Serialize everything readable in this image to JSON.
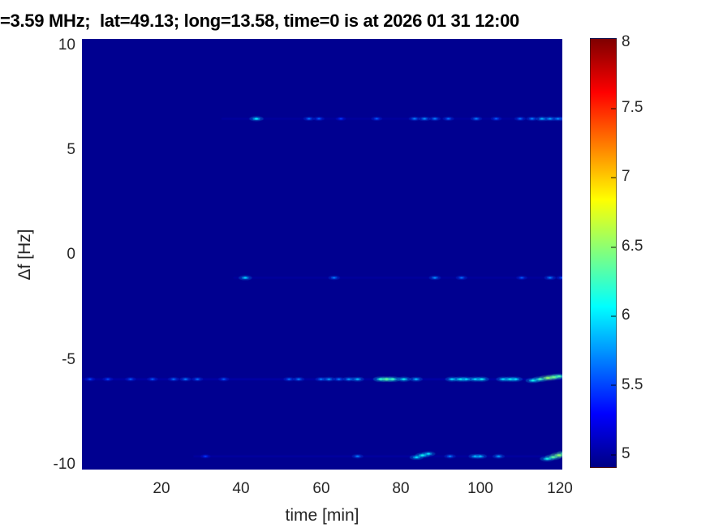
{
  "figure": {
    "title": "=3.59 MHz;  lat=49.13; long=13.58, time=0 is at 2026 01 31 12:00"
  },
  "colors": {
    "axis_text": "#262626",
    "title_text": "#000000",
    "plot_background": "#000090",
    "colorbar_top": "#7f0000",
    "colorbar_bottom": "#000084"
  },
  "chart_data": {
    "type": "heatmap",
    "title": "=3.59 MHz;  lat=49.13; long=13.58, time=0 is at 2026 01 31 12:00",
    "xlabel": "time [min]",
    "ylabel": "Δf [Hz]",
    "xlim": [
      0,
      120.6
    ],
    "ylim": [
      -10.25,
      10.25
    ],
    "clim": [
      4.9,
      8
    ],
    "colormap": "jet",
    "grid": false,
    "background_value": 4.95,
    "xticks": [
      "20",
      "40",
      "60",
      "80",
      "100",
      "120"
    ],
    "xtick_values": [
      20,
      40,
      60,
      80,
      100,
      120
    ],
    "yticks": [
      "10",
      "5",
      "0",
      "-5",
      "-10"
    ],
    "ytick_values": [
      10,
      5,
      0,
      -5,
      -10
    ],
    "colorbar": {
      "ticks": [
        "8",
        "7.5",
        "7",
        "6.5",
        "6",
        "5.5",
        "5"
      ],
      "tick_values": [
        8,
        7.5,
        7,
        6.5,
        6,
        5.5,
        5
      ],
      "position": "right"
    },
    "rows": [
      {
        "df": 6.45,
        "band": [
          35,
          121,
          5.08
        ],
        "dots": [
          [
            43.8,
            5.95
          ],
          [
            57,
            5.55
          ],
          [
            59.5,
            5.5
          ],
          [
            65,
            5.4
          ],
          [
            74,
            5.5
          ],
          [
            83.5,
            5.6
          ],
          [
            86,
            5.65
          ],
          [
            88.6,
            5.6
          ],
          [
            92,
            5.55
          ],
          [
            99,
            5.6
          ],
          [
            104,
            5.5
          ],
          [
            110,
            5.55
          ],
          [
            113,
            5.6
          ],
          [
            115.5,
            5.75
          ],
          [
            117.5,
            5.7
          ],
          [
            119.5,
            5.65
          ],
          [
            121,
            5.6
          ]
        ]
      },
      {
        "df": -1.12,
        "band": [
          38,
          121,
          5.07
        ],
        "dots": [
          [
            41,
            5.85
          ],
          [
            63.3,
            5.6
          ],
          [
            88.6,
            5.65
          ],
          [
            95.3,
            5.55
          ],
          [
            110.4,
            5.5
          ],
          [
            117.5,
            5.6
          ],
          [
            120.5,
            5.5
          ]
        ]
      },
      {
        "df": -5.95,
        "band": [
          0,
          121,
          5.15
        ],
        "dots": [
          [
            2,
            5.45
          ],
          [
            6.5,
            5.45
          ],
          [
            12.2,
            5.5
          ],
          [
            17.7,
            5.5
          ],
          [
            23,
            5.55
          ],
          [
            26,
            5.6
          ],
          [
            29,
            5.55
          ],
          [
            35.6,
            5.5
          ],
          [
            52,
            5.55
          ],
          [
            54.4,
            5.6
          ],
          [
            60,
            5.6
          ],
          [
            62,
            5.7
          ],
          [
            64.5,
            5.6
          ],
          [
            67,
            5.7
          ],
          [
            69.2,
            5.8
          ],
          [
            75,
            6.1
          ],
          [
            76.5,
            6.3
          ],
          [
            78,
            6.15
          ],
          [
            80.8,
            6.0
          ],
          [
            83.9,
            5.8
          ],
          [
            92.9,
            5.9
          ],
          [
            95,
            6.0
          ],
          [
            96.5,
            5.9
          ],
          [
            98.7,
            5.9
          ],
          [
            100.4,
            6.0
          ],
          [
            105.7,
            5.9
          ],
          [
            107.5,
            6.0
          ],
          [
            108.9,
            5.9
          ],
          [
            113.2,
            6.0,
            -0.06
          ],
          [
            115,
            6.15,
            0.0
          ],
          [
            117,
            6.45,
            0.06
          ],
          [
            118.5,
            6.35,
            0.1
          ],
          [
            119.8,
            6.2,
            0.14
          ]
        ]
      },
      {
        "df": -9.62,
        "band": [
          28,
          121,
          5.09
        ],
        "dots": [
          [
            31,
            5.4
          ],
          [
            69.2,
            5.6
          ],
          [
            84,
            5.9,
            -0.05
          ],
          [
            85.5,
            6.0,
            0.05
          ],
          [
            87,
            5.9,
            0.12
          ],
          [
            92.4,
            5.6
          ],
          [
            98.7,
            5.8
          ],
          [
            100,
            5.8
          ],
          [
            104.6,
            5.7
          ],
          [
            116.8,
            6.0,
            -0.12
          ],
          [
            118.3,
            6.25,
            -0.04
          ],
          [
            119.8,
            6.4,
            0.05
          ],
          [
            121.3,
            6.3,
            0.14
          ]
        ]
      }
    ]
  }
}
